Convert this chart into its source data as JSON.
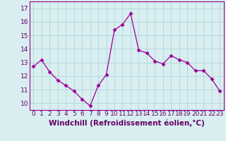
{
  "x": [
    0,
    1,
    2,
    3,
    4,
    5,
    6,
    7,
    8,
    9,
    10,
    11,
    12,
    13,
    14,
    15,
    16,
    17,
    18,
    19,
    20,
    21,
    22,
    23
  ],
  "y": [
    12.7,
    13.2,
    12.3,
    11.7,
    11.3,
    10.9,
    10.3,
    9.8,
    11.3,
    12.1,
    15.4,
    15.8,
    16.6,
    13.9,
    13.7,
    13.1,
    12.9,
    13.5,
    13.2,
    13.0,
    12.4,
    12.4,
    11.8,
    10.9
  ],
  "line_color": "#990099",
  "marker": "D",
  "marker_size": 2.5,
  "bg_color": "#d8eef0",
  "grid_color": "#b8d8dc",
  "xlabel": "Windchill (Refroidissement éolien,°C)",
  "xlabel_fontsize": 7.5,
  "tick_fontsize": 6.5,
  "ylim": [
    9.5,
    17.5
  ],
  "yticks": [
    10,
    11,
    12,
    13,
    14,
    15,
    16,
    17
  ],
  "xtick_labels": [
    "0",
    "1",
    "2",
    "3",
    "4",
    "5",
    "6",
    "7",
    "8",
    "9",
    "10",
    "11",
    "12",
    "13",
    "14",
    "15",
    "16",
    "17",
    "18",
    "19",
    "20",
    "21",
    "22",
    "23"
  ]
}
